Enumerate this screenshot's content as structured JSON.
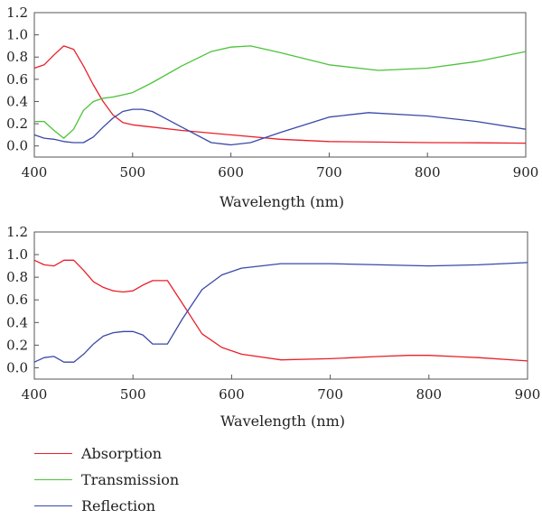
{
  "legend": [
    {
      "label": "Absorption",
      "color": "#e8202a"
    },
    {
      "label": "Transmission",
      "color": "#4cc23a"
    },
    {
      "label": "Reflection",
      "color": "#3a48a8"
    }
  ],
  "chart_data": [
    {
      "type": "line",
      "xlabel": "Wavelength (nm)",
      "ylabel": "",
      "xlim": [
        400,
        900
      ],
      "ylim": [
        -0.1,
        1.2
      ],
      "xticks": [
        400,
        500,
        600,
        700,
        800,
        900
      ],
      "yticks": [
        0.0,
        0.2,
        0.4,
        0.6,
        0.8,
        1.0,
        1.2
      ],
      "ytick_labels": [
        "0.0",
        "0.2",
        "0.4",
        "0.6",
        "0.8",
        "1.0",
        "1.2"
      ],
      "grid": false,
      "series": [
        {
          "name": "Absorption",
          "color": "#e8202a",
          "x": [
            400,
            410,
            420,
            430,
            440,
            450,
            460,
            470,
            480,
            490,
            500,
            520,
            550,
            600,
            650,
            700,
            750,
            800,
            850,
            900
          ],
          "y": [
            0.7,
            0.73,
            0.82,
            0.9,
            0.87,
            0.72,
            0.55,
            0.4,
            0.28,
            0.21,
            0.19,
            0.17,
            0.14,
            0.1,
            0.06,
            0.04,
            0.035,
            0.03,
            0.028,
            0.025
          ]
        },
        {
          "name": "Transmission",
          "color": "#4cc23a",
          "x": [
            400,
            410,
            420,
            430,
            440,
            450,
            460,
            470,
            480,
            490,
            500,
            520,
            550,
            580,
            600,
            620,
            650,
            700,
            750,
            800,
            850,
            900
          ],
          "y": [
            0.22,
            0.22,
            0.14,
            0.07,
            0.15,
            0.32,
            0.4,
            0.43,
            0.44,
            0.46,
            0.48,
            0.57,
            0.72,
            0.85,
            0.89,
            0.9,
            0.84,
            0.73,
            0.68,
            0.7,
            0.76,
            0.85
          ]
        },
        {
          "name": "Reflection",
          "color": "#3a48a8",
          "x": [
            400,
            410,
            420,
            430,
            440,
            450,
            460,
            470,
            480,
            490,
            500,
            510,
            520,
            550,
            580,
            600,
            620,
            650,
            700,
            740,
            800,
            850,
            900
          ],
          "y": [
            0.1,
            0.07,
            0.06,
            0.04,
            0.03,
            0.03,
            0.08,
            0.17,
            0.25,
            0.31,
            0.33,
            0.33,
            0.31,
            0.17,
            0.03,
            0.01,
            0.03,
            0.12,
            0.26,
            0.3,
            0.27,
            0.22,
            0.15
          ]
        }
      ]
    },
    {
      "type": "line",
      "xlabel": "Wavelength (nm)",
      "ylabel": "",
      "xlim": [
        400,
        900
      ],
      "ylim": [
        -0.1,
        1.2
      ],
      "xticks": [
        400,
        500,
        600,
        700,
        800,
        900
      ],
      "yticks": [
        0.0,
        0.2,
        0.4,
        0.6,
        0.8,
        1.0,
        1.2
      ],
      "ytick_labels": [
        "0.0",
        "0.2",
        "0.4",
        "0.6",
        "0.8",
        "1.0",
        "1.2"
      ],
      "grid": false,
      "series": [
        {
          "name": "Absorption",
          "color": "#e8202a",
          "x": [
            400,
            410,
            420,
            430,
            440,
            450,
            460,
            470,
            480,
            490,
            500,
            510,
            520,
            535,
            550,
            570,
            590,
            610,
            650,
            700,
            750,
            780,
            800,
            850,
            900
          ],
          "y": [
            0.95,
            0.91,
            0.9,
            0.95,
            0.95,
            0.86,
            0.76,
            0.71,
            0.68,
            0.67,
            0.68,
            0.73,
            0.77,
            0.77,
            0.57,
            0.3,
            0.18,
            0.12,
            0.07,
            0.08,
            0.1,
            0.11,
            0.11,
            0.09,
            0.06
          ]
        },
        {
          "name": "Reflection",
          "color": "#3a48a8",
          "x": [
            400,
            410,
            420,
            430,
            440,
            450,
            460,
            470,
            480,
            490,
            500,
            510,
            520,
            535,
            550,
            570,
            590,
            610,
            650,
            700,
            750,
            800,
            850,
            900
          ],
          "y": [
            0.05,
            0.09,
            0.1,
            0.05,
            0.05,
            0.12,
            0.21,
            0.28,
            0.31,
            0.32,
            0.32,
            0.29,
            0.21,
            0.21,
            0.43,
            0.69,
            0.82,
            0.88,
            0.92,
            0.92,
            0.91,
            0.9,
            0.91,
            0.93
          ]
        }
      ]
    }
  ]
}
